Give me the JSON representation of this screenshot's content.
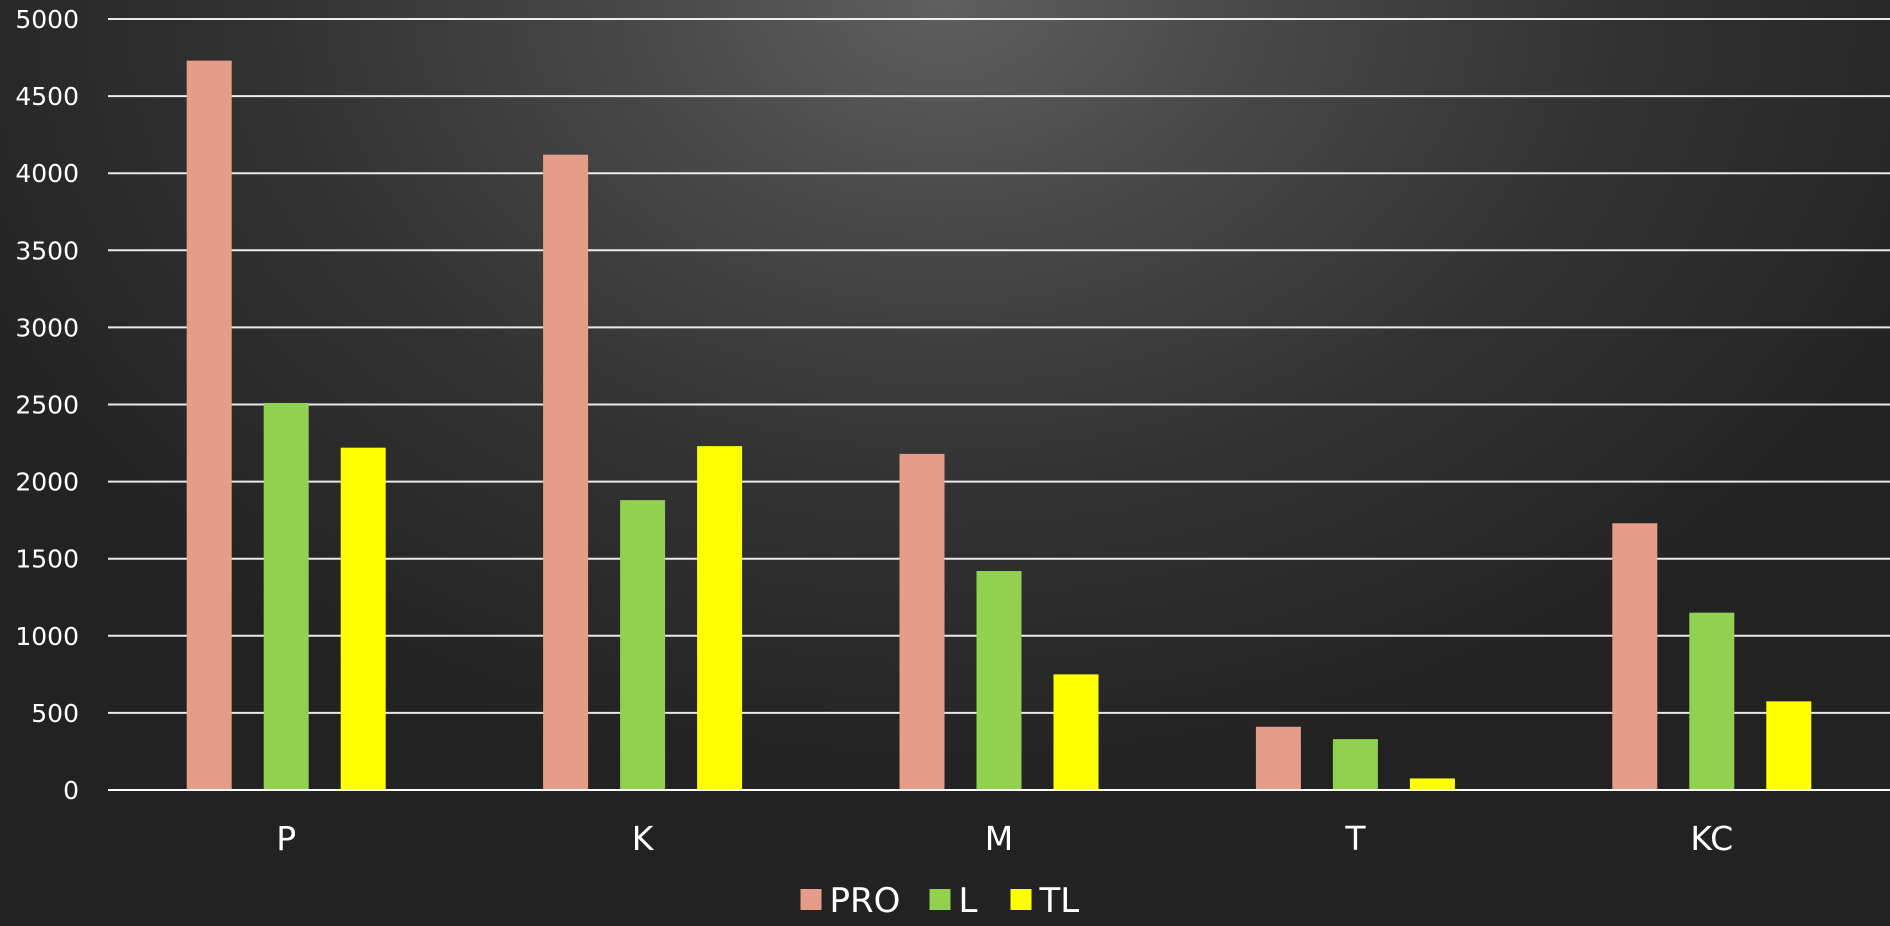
{
  "chart_data": {
    "type": "bar",
    "categories": [
      "P",
      "K",
      "M",
      "T",
      "KC"
    ],
    "series": [
      {
        "name": "PRO",
        "color": "#E59C88",
        "values": [
          4730,
          4120,
          2180,
          410,
          1730
        ]
      },
      {
        "name": "L",
        "color": "#92D050",
        "values": [
          2510,
          1880,
          1420,
          330,
          1150
        ]
      },
      {
        "name": "TL",
        "color": "#FFFF00",
        "values": [
          2220,
          2230,
          750,
          75,
          575
        ]
      }
    ],
    "ylim": [
      0,
      5000
    ],
    "yticks": [
      0,
      500,
      1000,
      1500,
      2000,
      2500,
      3000,
      3500,
      4000,
      4500,
      5000
    ],
    "grid": true,
    "gridline_color": "#ffffff",
    "legend_position": "bottom-center",
    "background": "dark-radial-gradient"
  }
}
